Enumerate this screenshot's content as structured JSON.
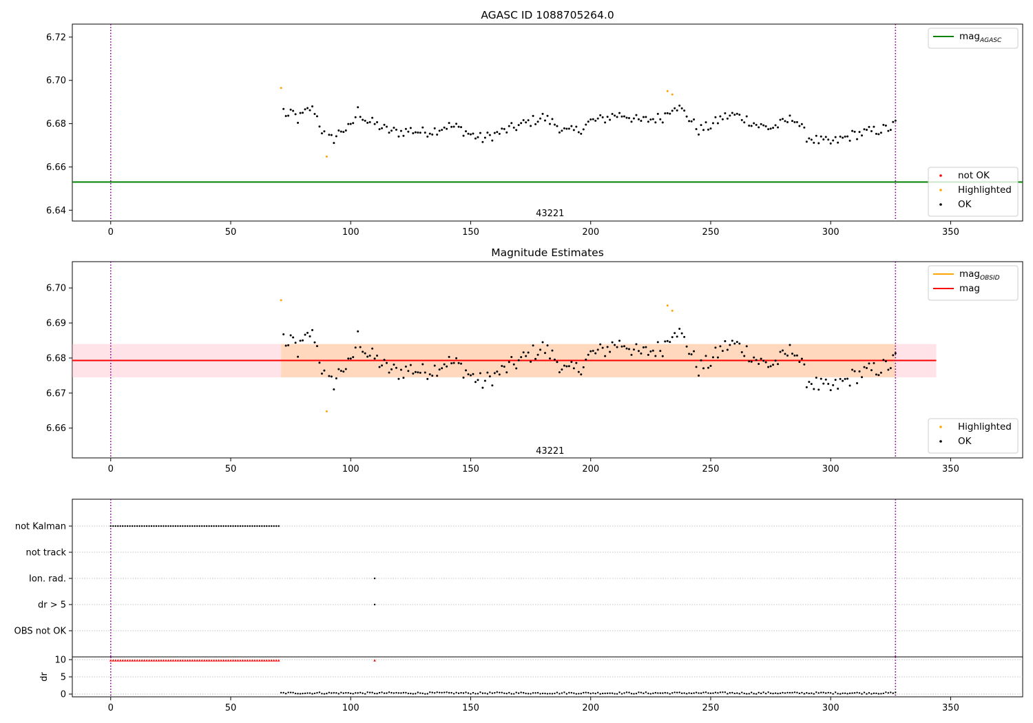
{
  "chart_data": [
    {
      "type": "scatter",
      "title": "AGASC ID 1088705264.0",
      "xlim": [
        -16,
        380
      ],
      "ylim": [
        6.635,
        6.726
      ],
      "xticks": [
        0,
        50,
        100,
        150,
        200,
        250,
        300,
        350
      ],
      "yticks": [
        6.64,
        6.66,
        6.68,
        6.7,
        6.72
      ],
      "ytick_decimals": 2,
      "vlines": [
        0,
        327
      ],
      "annotation": {
        "text": "43221",
        "x": 163,
        "y": 6.6385
      },
      "hlines": [
        {
          "name": "mag",
          "subscript": "AGASC",
          "value": 6.653,
          "x_range": [
            -16,
            380
          ],
          "color": "#008000"
        }
      ],
      "legends": [
        {
          "position": "top-right",
          "items": [
            {
              "label": "mag",
              "subscript": "AGASC",
              "kind": "line",
              "color": "#008000"
            }
          ]
        },
        {
          "position": "bottom-right",
          "items": [
            {
              "label": "not OK",
              "kind": "dot",
              "color": "#ff0000"
            },
            {
              "label": "Highlighted",
              "kind": "dot",
              "color": "#ffa500"
            },
            {
              "label": "OK",
              "kind": "dot",
              "color": "#000000"
            }
          ]
        }
      ],
      "highlighted_points": [
        [
          71,
          6.6965
        ],
        [
          90,
          6.6648
        ],
        [
          232,
          6.695
        ],
        [
          234,
          6.6935
        ]
      ]
    },
    {
      "type": "scatter",
      "title": "Magnitude Estimates",
      "xlim": [
        -16,
        380
      ],
      "ylim": [
        6.6515,
        6.7075
      ],
      "xticks": [
        0,
        50,
        100,
        150,
        200,
        250,
        300,
        350
      ],
      "yticks": [
        6.66,
        6.67,
        6.68,
        6.69,
        6.7
      ],
      "ytick_decimals": 2,
      "vlines": [
        0,
        327
      ],
      "annotation": {
        "text": "43221",
        "x": 163,
        "y": 6.6535
      },
      "hlines": [
        {
          "name": "mag",
          "value": 6.6793,
          "x_range": [
            -16,
            344
          ],
          "color": "#ff0000",
          "band": [
            6.6745,
            6.684
          ],
          "band_color": "#ffc0cb"
        },
        {
          "name": "mag",
          "subscript": "OBSID",
          "value": 6.6793,
          "x_range": [
            71,
            327
          ],
          "color": "#ffa500",
          "band": [
            6.6745,
            6.684
          ],
          "band_color": "#ffa500"
        }
      ],
      "legends": [
        {
          "position": "top-right",
          "items": [
            {
              "label": "mag",
              "subscript": "OBSID",
              "kind": "line",
              "color": "#ffa500"
            },
            {
              "label": "mag",
              "kind": "line",
              "color": "#ff0000"
            }
          ]
        },
        {
          "position": "bottom-right",
          "items": [
            {
              "label": "Highlighted",
              "kind": "dot",
              "color": "#ffa500"
            },
            {
              "label": "OK",
              "kind": "dot",
              "color": "#000000"
            }
          ]
        }
      ],
      "highlighted_points": [
        [
          71,
          6.6965
        ],
        [
          90,
          6.6648
        ],
        [
          232,
          6.695
        ],
        [
          234,
          6.6935
        ]
      ]
    },
    {
      "type": "scatter",
      "title": "",
      "xlim": [
        -16,
        380
      ],
      "categories": [
        "not Kalman",
        "not track",
        "Ion. rad.",
        "dr > 5",
        "OBS not OK"
      ],
      "vlines": [
        0,
        327
      ],
      "flags": {
        "not Kalman": {
          "x_start": 0,
          "x_end": 70,
          "step": 1
        },
        "Ion. rad.": {
          "x": [
            110
          ]
        },
        "dr > 5": {
          "x": [
            110
          ]
        }
      }
    },
    {
      "type": "scatter",
      "title": "",
      "ylabel": "dr",
      "xlim": [
        -16,
        380
      ],
      "ylim": [
        -0.8,
        10.8
      ],
      "xticks": [
        0,
        50,
        100,
        150,
        200,
        250,
        300,
        350
      ],
      "yticks": [
        0,
        5,
        10
      ],
      "vlines": [
        0,
        327
      ],
      "red_markers": {
        "x_start": 0,
        "x_end": 70,
        "step": 1,
        "extra_x": [
          110
        ],
        "value": 9.8
      },
      "low_points": {
        "x_start": 71,
        "x_end": 327,
        "approx_value": 0.3
      }
    }
  ],
  "ok_series_anchors": [
    [
      72,
      6.686
    ],
    [
      74,
      6.683
    ],
    [
      76,
      6.685
    ],
    [
      78,
      6.682
    ],
    [
      81,
      6.685
    ],
    [
      83,
      6.687
    ],
    [
      85,
      6.686
    ],
    [
      88,
      6.677
    ],
    [
      90,
      6.673
    ],
    [
      93,
      6.673
    ],
    [
      96,
      6.677
    ],
    [
      100,
      6.678
    ],
    [
      103,
      6.686
    ],
    [
      107,
      6.681
    ],
    [
      110,
      6.68
    ],
    [
      115,
      6.677
    ],
    [
      120,
      6.676
    ],
    [
      125,
      6.677
    ],
    [
      130,
      6.676
    ],
    [
      135,
      6.677
    ],
    [
      140,
      6.679
    ],
    [
      145,
      6.678
    ],
    [
      150,
      6.675
    ],
    [
      155,
      6.673
    ],
    [
      160,
      6.675
    ],
    [
      165,
      6.677
    ],
    [
      170,
      6.679
    ],
    [
      175,
      6.681
    ],
    [
      180,
      6.683
    ],
    [
      185,
      6.68
    ],
    [
      190,
      6.676
    ],
    [
      195,
      6.677
    ],
    [
      200,
      6.681
    ],
    [
      205,
      6.682
    ],
    [
      210,
      6.684
    ],
    [
      215,
      6.684
    ],
    [
      220,
      6.681
    ],
    [
      225,
      6.682
    ],
    [
      230,
      6.683
    ],
    [
      235,
      6.689
    ],
    [
      240,
      6.684
    ],
    [
      245,
      6.677
    ],
    [
      250,
      6.679
    ],
    [
      255,
      6.683
    ],
    [
      260,
      6.684
    ],
    [
      265,
      6.682
    ],
    [
      270,
      6.679
    ],
    [
      275,
      6.678
    ],
    [
      280,
      6.68
    ],
    [
      285,
      6.683
    ],
    [
      290,
      6.674
    ],
    [
      295,
      6.672
    ],
    [
      300,
      6.671
    ],
    [
      305,
      6.673
    ],
    [
      310,
      6.675
    ],
    [
      315,
      6.676
    ],
    [
      320,
      6.677
    ],
    [
      325,
      6.678
    ],
    [
      327,
      6.68
    ]
  ]
}
